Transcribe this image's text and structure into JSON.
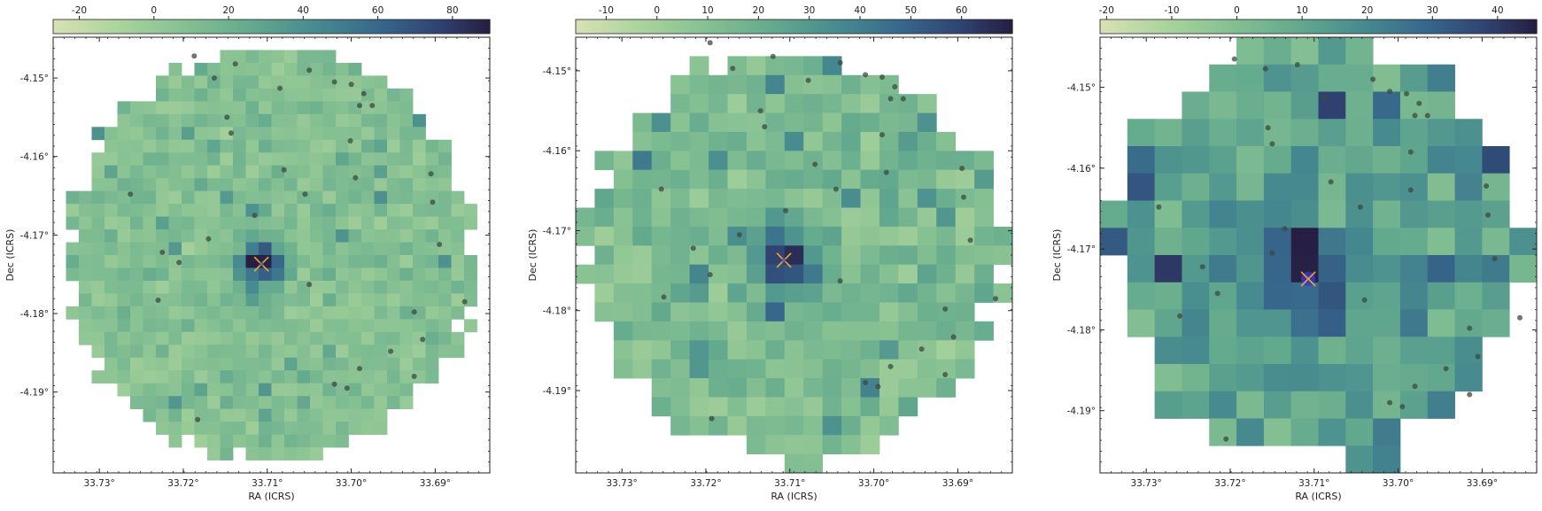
{
  "chart_data": [
    {
      "type": "heatmap",
      "title": "",
      "xlabel": "RA (ICRS)",
      "ylabel": "Dec (ICRS)",
      "xticks": [
        "33.73°",
        "33.72°",
        "33.71°",
        "33.70°",
        "33.69°"
      ],
      "xtick_values": [
        33.73,
        33.72,
        33.71,
        33.7,
        33.69
      ],
      "yticks": [
        "-4.15°",
        "-4.16°",
        "-4.17°",
        "-4.18°",
        "-4.19°"
      ],
      "ytick_values": [
        -4.15,
        -4.16,
        -4.17,
        -4.18,
        -4.19
      ],
      "xlim": [
        33.7355,
        33.6835
      ],
      "ylim": [
        -4.2003,
        -4.1448
      ],
      "colorbar": {
        "ticks": [
          -20,
          0,
          20,
          40,
          60,
          80
        ],
        "range": [
          -27,
          90
        ],
        "position": "top",
        "colormap": "crest"
      },
      "grid_cells": 34,
      "background_level": 8,
      "source": {
        "ra": 33.7107,
        "dec": -4.1737,
        "peak": 88,
        "marker": "x",
        "marker_color": "#f4a82a",
        "star_color": "#3a3acc"
      },
      "points": [
        [
          33.7187,
          -4.1472
        ],
        [
          33.7163,
          -4.15
        ],
        [
          33.7138,
          -4.1482
        ],
        [
          33.7085,
          -4.1513
        ],
        [
          33.705,
          -4.149
        ],
        [
          33.702,
          -4.1505
        ],
        [
          33.7,
          -4.1508
        ],
        [
          33.6985,
          -4.152
        ],
        [
          33.699,
          -4.1535
        ],
        [
          33.6975,
          -4.1535
        ],
        [
          33.7148,
          -4.155
        ],
        [
          33.7143,
          -4.157
        ],
        [
          33.7001,
          -4.158
        ],
        [
          33.708,
          -4.1617
        ],
        [
          33.6995,
          -4.1627
        ],
        [
          33.6905,
          -4.1622
        ],
        [
          33.6903,
          -4.1658
        ],
        [
          33.7055,
          -4.1648
        ],
        [
          33.7115,
          -4.1675
        ],
        [
          33.7263,
          -4.1648
        ],
        [
          33.717,
          -4.1705
        ],
        [
          33.6895,
          -4.1712
        ],
        [
          33.7225,
          -4.1722
        ],
        [
          33.7205,
          -4.1735
        ],
        [
          33.705,
          -4.1763
        ],
        [
          33.723,
          -4.1783
        ],
        [
          33.6865,
          -4.1785
        ],
        [
          33.6925,
          -4.1798
        ],
        [
          33.6915,
          -4.1833
        ],
        [
          33.6953,
          -4.1848
        ],
        [
          33.699,
          -4.187
        ],
        [
          33.6925,
          -4.188
        ],
        [
          33.702,
          -4.189
        ],
        [
          33.7005,
          -4.1895
        ],
        [
          33.7183,
          -4.1935
        ]
      ]
    },
    {
      "type": "heatmap",
      "title": "",
      "xlabel": "RA (ICRS)",
      "ylabel": "Dec (ICRS)",
      "xticks": [
        "33.73°",
        "33.72°",
        "33.71°",
        "33.70°",
        "33.69°"
      ],
      "xtick_values": [
        33.73,
        33.72,
        33.71,
        33.7,
        33.69
      ],
      "yticks": [
        "-4.15°",
        "-4.16°",
        "-4.17°",
        "-4.18°",
        "-4.19°"
      ],
      "ytick_values": [
        -4.15,
        -4.16,
        -4.17,
        -4.18,
        -4.19
      ],
      "xlim": [
        33.7355,
        33.6835
      ],
      "ylim": [
        -4.2003,
        -4.1458
      ],
      "colorbar": {
        "ticks": [
          -10,
          0,
          10,
          20,
          30,
          40,
          50,
          60
        ],
        "range": [
          -16,
          70
        ],
        "position": "top",
        "colormap": "crest"
      },
      "grid_cells": 23,
      "background_level": 13,
      "source": {
        "ra": 33.7107,
        "dec": -4.1737,
        "peak": 68,
        "marker": "x",
        "marker_color": "#f4a82a",
        "star_color": "#3a3acc"
      },
      "points": [
        [
          33.7195,
          -4.1465
        ],
        [
          33.7168,
          -4.1497
        ],
        [
          33.712,
          -4.1482
        ],
        [
          33.7078,
          -4.1512
        ],
        [
          33.704,
          -4.149
        ],
        [
          33.701,
          -4.1505
        ],
        [
          33.699,
          -4.1508
        ],
        [
          33.6975,
          -4.152
        ],
        [
          33.698,
          -4.1535
        ],
        [
          33.6965,
          -4.1535
        ],
        [
          33.7135,
          -4.155
        ],
        [
          33.713,
          -4.157
        ],
        [
          33.699,
          -4.158
        ],
        [
          33.707,
          -4.1617
        ],
        [
          33.6985,
          -4.1627
        ],
        [
          33.6895,
          -4.1622
        ],
        [
          33.6893,
          -4.1658
        ],
        [
          33.7045,
          -4.1648
        ],
        [
          33.7105,
          -4.1675
        ],
        [
          33.7253,
          -4.1648
        ],
        [
          33.716,
          -4.1705
        ],
        [
          33.6885,
          -4.1712
        ],
        [
          33.7215,
          -4.1722
        ],
        [
          33.7195,
          -4.1755
        ],
        [
          33.704,
          -4.1763
        ],
        [
          33.725,
          -4.1783
        ],
        [
          33.6855,
          -4.1785
        ],
        [
          33.6915,
          -4.1798
        ],
        [
          33.6905,
          -4.1833
        ],
        [
          33.6943,
          -4.1848
        ],
        [
          33.698,
          -4.187
        ],
        [
          33.6915,
          -4.188
        ],
        [
          33.701,
          -4.189
        ],
        [
          33.6995,
          -4.1895
        ],
        [
          33.7193,
          -4.1935
        ]
      ]
    },
    {
      "type": "heatmap",
      "title": "",
      "xlabel": "RA (ICRS)",
      "ylabel": "Dec (ICRS)",
      "xticks": [
        "33.73°",
        "33.72°",
        "33.71°",
        "33.70°",
        "33.69°"
      ],
      "xtick_values": [
        33.73,
        33.72,
        33.71,
        33.7,
        33.69
      ],
      "yticks": [
        "-4.15°",
        "-4.16°",
        "-4.17°",
        "-4.18°",
        "-4.19°"
      ],
      "ytick_values": [
        -4.15,
        -4.16,
        -4.17,
        -4.18,
        -4.19
      ],
      "xlim": [
        33.7355,
        33.6835
      ],
      "ylim": [
        -4.1977,
        -4.1438
      ],
      "colorbar": {
        "ticks": [
          -20,
          -10,
          0,
          10,
          20,
          30,
          40
        ],
        "range": [
          -21,
          46
        ],
        "position": "top",
        "colormap": "crest"
      },
      "grid_cells": 16,
      "background_level": 12,
      "source": {
        "ra": 33.7107,
        "dec": -4.1737,
        "peak": 44,
        "marker": "x",
        "marker_color": "#f4a82a",
        "star_color": "#3a3acc"
      },
      "points": [
        [
          33.7195,
          -4.1465
        ],
        [
          33.7158,
          -4.1477
        ],
        [
          33.712,
          -4.1472
        ],
        [
          33.7088,
          -4.1512
        ],
        [
          33.703,
          -4.149
        ],
        [
          33.701,
          -4.1505
        ],
        [
          33.699,
          -4.1508
        ],
        [
          33.6975,
          -4.152
        ],
        [
          33.698,
          -4.1535
        ],
        [
          33.6965,
          -4.1535
        ],
        [
          33.7155,
          -4.155
        ],
        [
          33.715,
          -4.157
        ],
        [
          33.6985,
          -4.158
        ],
        [
          33.708,
          -4.1617
        ],
        [
          33.6985,
          -4.1627
        ],
        [
          33.6895,
          -4.1622
        ],
        [
          33.6893,
          -4.1658
        ],
        [
          33.7045,
          -4.1648
        ],
        [
          33.7135,
          -4.1675
        ],
        [
          33.7285,
          -4.1648
        ],
        [
          33.715,
          -4.1705
        ],
        [
          33.6885,
          -4.1712
        ],
        [
          33.7233,
          -4.1722
        ],
        [
          33.7215,
          -4.1755
        ],
        [
          33.704,
          -4.1763
        ],
        [
          33.726,
          -4.1783
        ],
        [
          33.6855,
          -4.1785
        ],
        [
          33.6915,
          -4.1798
        ],
        [
          33.6905,
          -4.1833
        ],
        [
          33.6943,
          -4.1848
        ],
        [
          33.698,
          -4.187
        ],
        [
          33.6915,
          -4.188
        ],
        [
          33.701,
          -4.189
        ],
        [
          33.6995,
          -4.1895
        ],
        [
          33.7205,
          -4.1935
        ]
      ]
    }
  ]
}
